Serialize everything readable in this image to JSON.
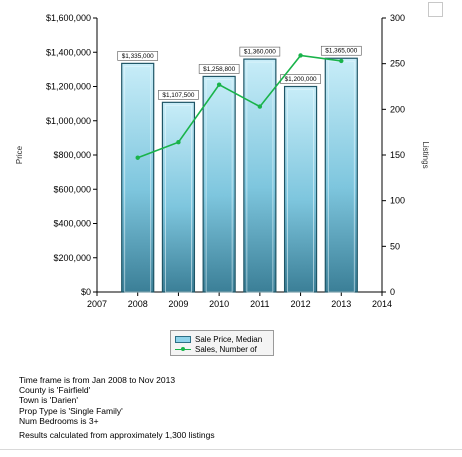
{
  "chart_data": {
    "type": "bar",
    "title": "",
    "categories": [
      "2008",
      "2009",
      "2010",
      "2011",
      "2012",
      "2013"
    ],
    "x_axis": {
      "tick_labels": [
        "2007",
        "2008",
        "2009",
        "2010",
        "2011",
        "2012",
        "2013",
        "2014"
      ],
      "range": [
        2007,
        2014
      ]
    },
    "y_left": {
      "label": "Price",
      "range": [
        0,
        1600000
      ],
      "tick_labels": [
        "$0",
        "$200,000",
        "$400,000",
        "$600,000",
        "$800,000",
        "$1,000,000",
        "$1,200,000",
        "$1,400,000",
        "$1,600,000"
      ]
    },
    "y_right": {
      "label": "Listings",
      "range": [
        0,
        300
      ],
      "tick_labels": [
        "0",
        "50",
        "100",
        "150",
        "200",
        "250",
        "300"
      ]
    },
    "series": [
      {
        "name": "Sale Price, Median",
        "type": "bar",
        "axis": "left",
        "x": [
          2008,
          2009,
          2010,
          2011,
          2012,
          2013
        ],
        "values": [
          1335000,
          1107500,
          1258800,
          1360000,
          1200000,
          1365000
        ],
        "data_labels": [
          "$1,335,000",
          "$1,107,500",
          "$1,258,800",
          "$1,360,000",
          "$1,200,000",
          "$1,365,000"
        ],
        "color": "#8fd3ea"
      },
      {
        "name": "Sales, Number of",
        "type": "line",
        "axis": "right",
        "x": [
          2008,
          2009,
          2010,
          2011,
          2012,
          2013
        ],
        "values": [
          147,
          164,
          227,
          203,
          259,
          253
        ],
        "color": "#19b34a"
      }
    ],
    "grid": false,
    "legend_position": "bottom-center"
  },
  "notes": {
    "lines": [
      "Time frame is from Jan 2008 to Nov 2013",
      "County is 'Fairfield'",
      "Town is 'Darien'",
      "Prop Type is 'Single Family'",
      "Num Bedrooms is 3+"
    ],
    "summary": "Results calculated from approximately 1,300 listings"
  },
  "colors": {
    "bar_fill_top": "#bfe8f5",
    "bar_fill_bottom": "#3e8aa6",
    "bar_border": "#1f5566",
    "line": "#19b34a",
    "axis": "#000000"
  }
}
